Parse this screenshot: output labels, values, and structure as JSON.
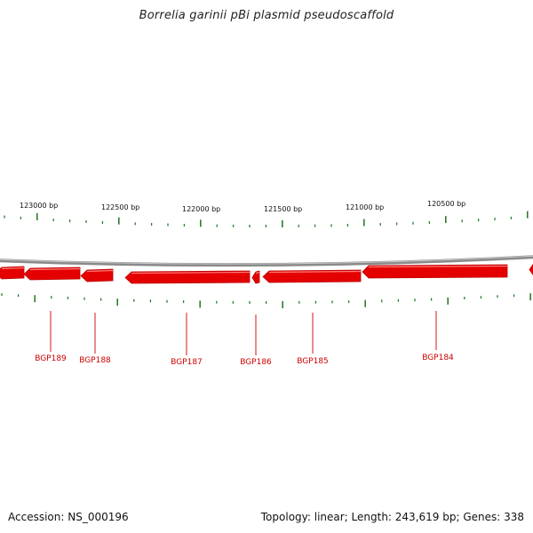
{
  "title": "Borrelia garinii pBi plasmid pseudoscaffold",
  "footer": {
    "accession_text": "Accession: NS_000196",
    "summary_text": "Topology: linear; Length: 243,619 bp; Genes: 338"
  },
  "colors": {
    "gene_fill": "#e40000",
    "gene_stroke": "#b80000",
    "tick_color": "#2e7d2e",
    "backbone_color": "#8a8a8a",
    "label_color": "#cc0000"
  },
  "bp_ruler": {
    "unit": "bp",
    "labels": [
      "123000 bp",
      "122500 bp",
      "122000 bp",
      "121500 bp",
      "121000 bp",
      "120500 bp"
    ]
  },
  "genes": [
    {
      "name": "",
      "direction": "reverse"
    },
    {
      "name": "BGP189",
      "direction": "reverse"
    },
    {
      "name": "BGP188",
      "direction": "reverse"
    },
    {
      "name": "BGP187",
      "direction": "reverse"
    },
    {
      "name": "BGP186",
      "direction": "reverse"
    },
    {
      "name": "BGP185",
      "direction": "reverse"
    },
    {
      "name": "BGP184",
      "direction": "reverse"
    },
    {
      "name": "",
      "direction": "reverse"
    }
  ]
}
